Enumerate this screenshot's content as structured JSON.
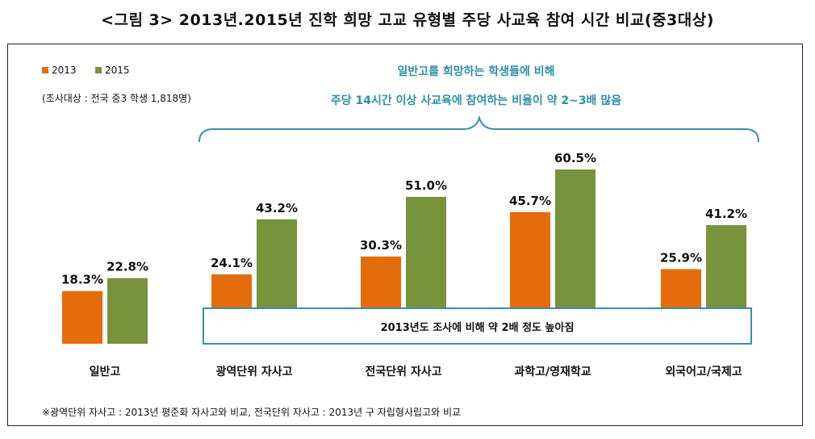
{
  "figure": {
    "title": "<그림 3> 2013년.2015년 진학 희망 고교 유형별 주당 사교육 참여 시간 비교(중3대상)",
    "subject_note": "(조사대상 : 전국 중3 학생 1,818명)",
    "callout_line1": "일반고를 희망하는 학생들에 비해",
    "callout_line2": "주당 14시간 이상 사교육에 참여하는 비율이  약 2~3배 많음",
    "box_note": "2013년도 조사에 비해 약 2배 정도 높아짐",
    "footnote": "※광역단위 자사고 : 2013년 평준화 자사고와 비교, 전국단위 자사고 : 2013년 구 자립형사립고와 비교"
  },
  "chart_data": {
    "type": "bar",
    "categories": [
      "일반고",
      "광역단위 자사고",
      "전국단위 자사고",
      "과학고/영재학교",
      "외국어고/국제고"
    ],
    "series": [
      {
        "name": "2013",
        "color": "#e46c0a",
        "values": [
          18.3,
          24.1,
          30.3,
          45.7,
          25.9
        ],
        "labels": [
          "18.3%",
          "24.1%",
          "30.3%",
          "45.7%",
          "25.9%"
        ]
      },
      {
        "name": "2015",
        "color": "#77933c",
        "values": [
          22.8,
          43.2,
          51.0,
          60.5,
          41.2
        ],
        "labels": [
          "22.8%",
          "43.2%",
          "51.0%",
          "60.5%",
          "41.2%"
        ]
      }
    ],
    "ylim": [
      0,
      100
    ],
    "grid": false,
    "legend_position": "top-left"
  }
}
